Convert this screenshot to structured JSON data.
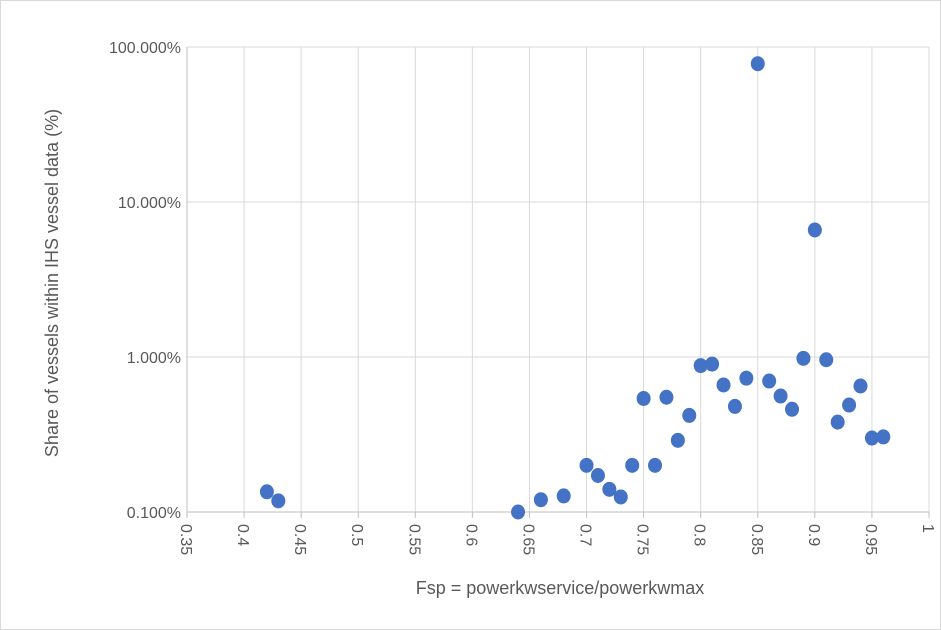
{
  "chart_data": {
    "type": "scatter",
    "title": "",
    "xlabel": "Fsp = powerkwservice/powerkwmax",
    "ylabel": "Share of vessels within IHS vessel data (%)",
    "xlim": [
      0.35,
      1
    ],
    "ylim": [
      0.1,
      100
    ],
    "yscale": "log",
    "x_ticks": [
      "0.35",
      "0.4",
      "0.45",
      "0.5",
      "0.55",
      "0.6",
      "0.65",
      "0.7",
      "0.75",
      "0.8",
      "0.85",
      "0.9",
      "0.95",
      "1"
    ],
    "y_ticks": [
      "0.100%",
      "1.000%",
      "10.000%",
      "100.000%"
    ],
    "grid": true,
    "legend": "none",
    "series": [
      {
        "color": "#4472c4",
        "points": [
          {
            "x": 0.42,
            "y": 0.135
          },
          {
            "x": 0.43,
            "y": 0.118
          },
          {
            "x": 0.64,
            "y": 0.1
          },
          {
            "x": 0.66,
            "y": 0.12
          },
          {
            "x": 0.68,
            "y": 0.127
          },
          {
            "x": 0.7,
            "y": 0.2
          },
          {
            "x": 0.71,
            "y": 0.172
          },
          {
            "x": 0.72,
            "y": 0.14
          },
          {
            "x": 0.73,
            "y": 0.125
          },
          {
            "x": 0.74,
            "y": 0.2
          },
          {
            "x": 0.75,
            "y": 0.54
          },
          {
            "x": 0.76,
            "y": 0.2
          },
          {
            "x": 0.77,
            "y": 0.55
          },
          {
            "x": 0.78,
            "y": 0.29
          },
          {
            "x": 0.79,
            "y": 0.42
          },
          {
            "x": 0.8,
            "y": 0.88
          },
          {
            "x": 0.81,
            "y": 0.9
          },
          {
            "x": 0.82,
            "y": 0.66
          },
          {
            "x": 0.83,
            "y": 0.48
          },
          {
            "x": 0.84,
            "y": 0.73
          },
          {
            "x": 0.85,
            "y": 78.0
          },
          {
            "x": 0.86,
            "y": 0.7
          },
          {
            "x": 0.87,
            "y": 0.56
          },
          {
            "x": 0.88,
            "y": 0.46
          },
          {
            "x": 0.89,
            "y": 0.98
          },
          {
            "x": 0.9,
            "y": 6.6
          },
          {
            "x": 0.91,
            "y": 0.96
          },
          {
            "x": 0.92,
            "y": 0.38
          },
          {
            "x": 0.93,
            "y": 0.49
          },
          {
            "x": 0.94,
            "y": 0.65
          },
          {
            "x": 0.95,
            "y": 0.3
          },
          {
            "x": 0.96,
            "y": 0.305
          }
        ]
      }
    ]
  }
}
